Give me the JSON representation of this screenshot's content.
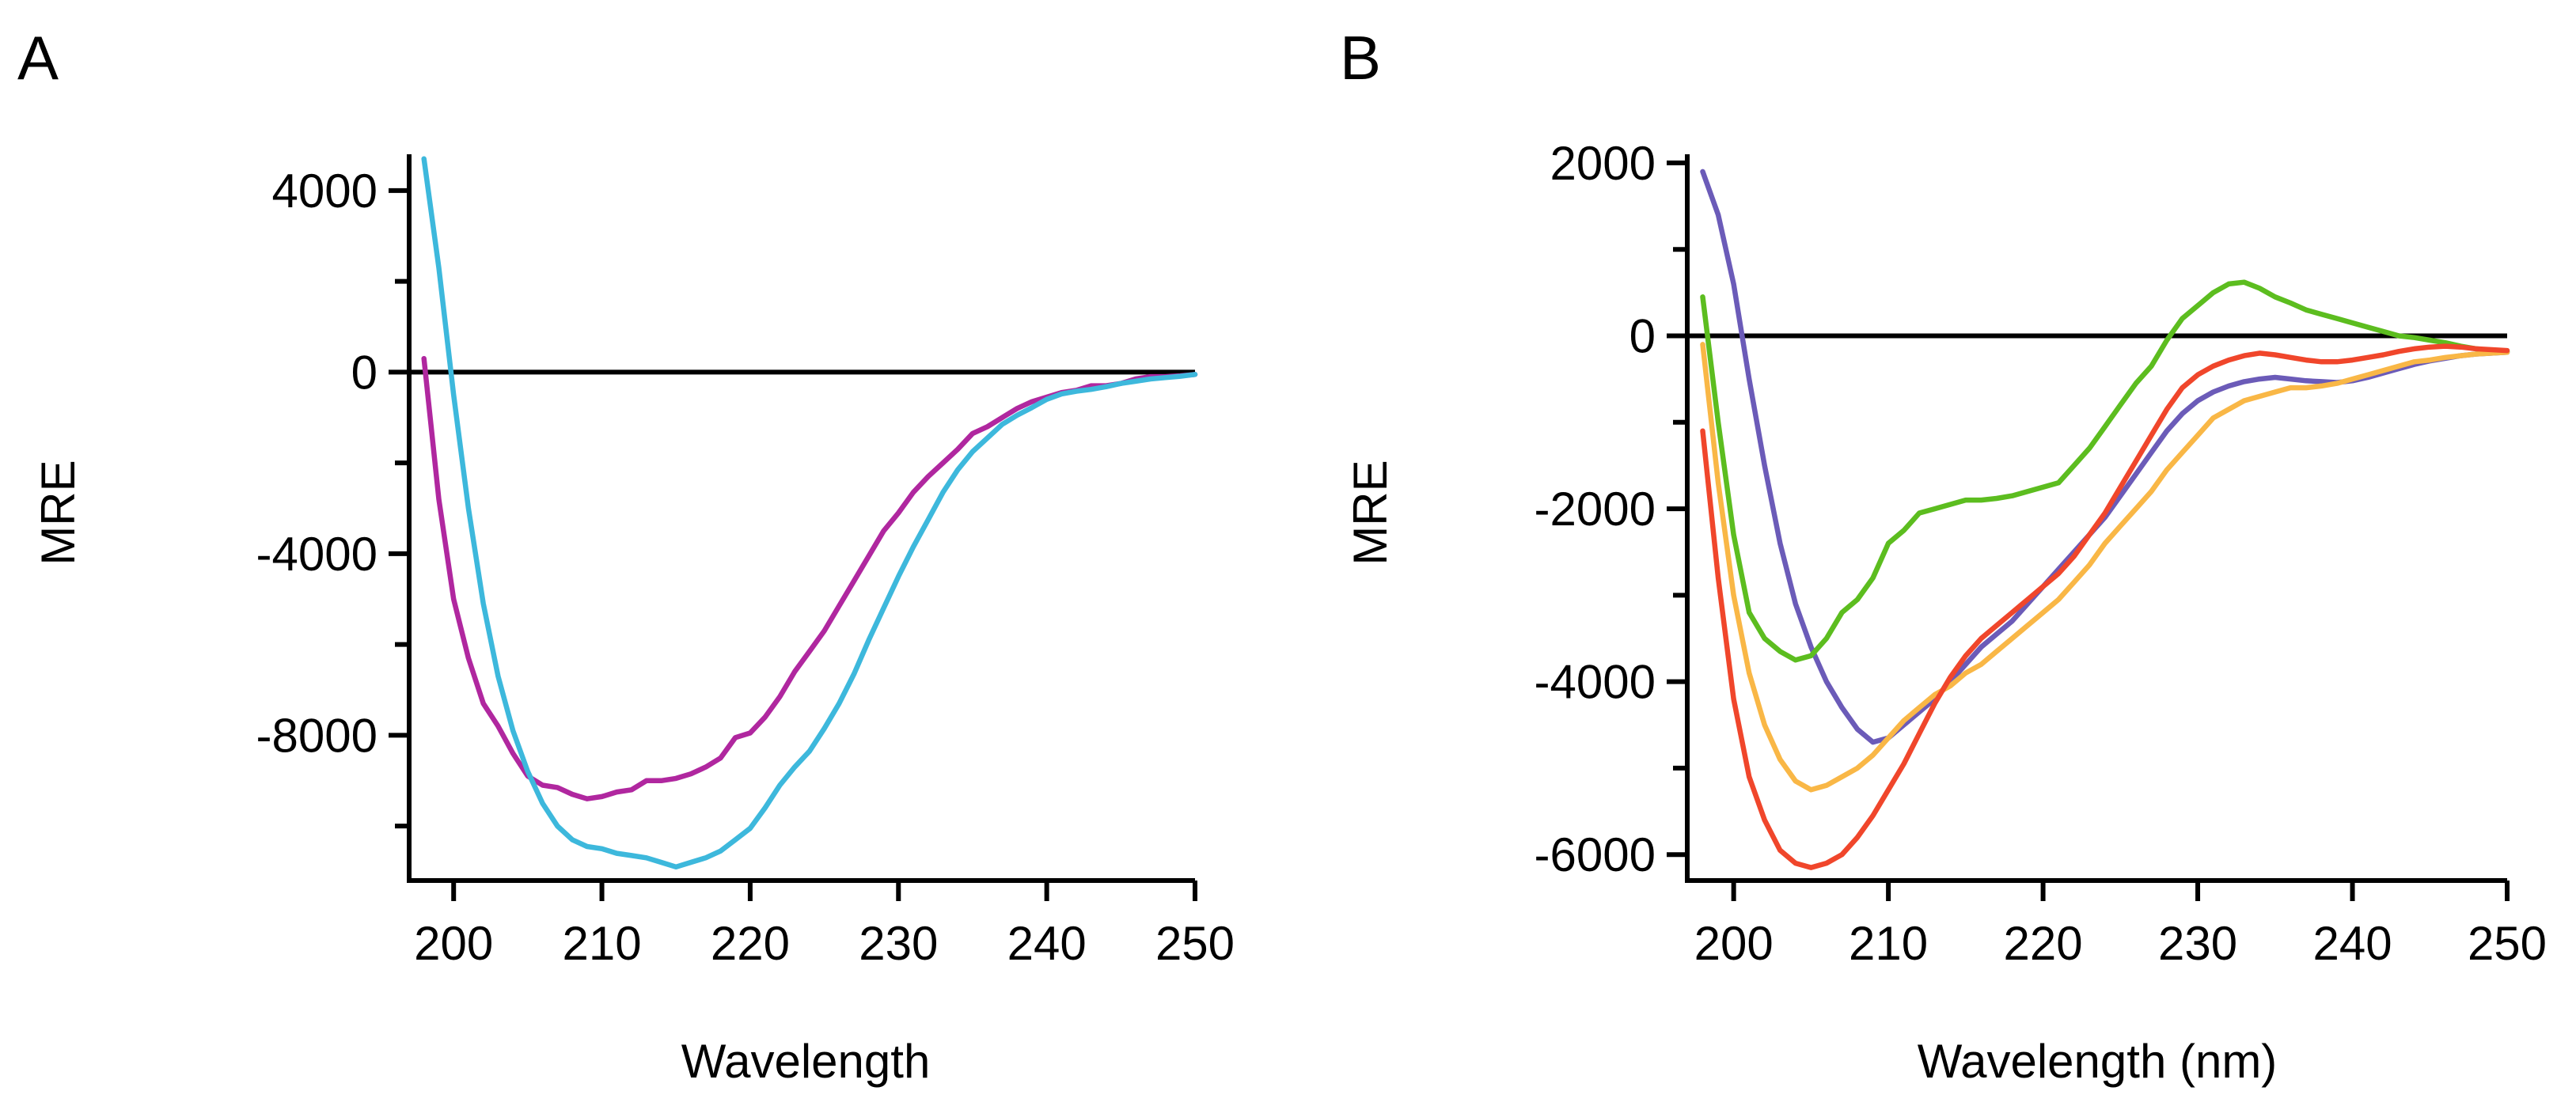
{
  "chart_data": [
    {
      "type": "line",
      "panel_label": "A",
      "title": "",
      "xlabel": "Wavelength",
      "ylabel": "MRE",
      "xlim": [
        197,
        250
      ],
      "ylim": [
        -11200,
        4800
      ],
      "xticks": [
        200,
        210,
        220,
        230,
        240,
        250
      ],
      "yticks": [
        4000,
        0,
        -4000,
        -8000
      ],
      "ytick_labels": [
        "4000",
        "0",
        "-4000",
        "-8000"
      ],
      "yminor_ticks": [
        2000,
        -2000,
        -6000,
        -10000
      ],
      "zero_line": true,
      "grid": false,
      "series": [
        {
          "name": "magenta",
          "color": "#b0279f",
          "x": [
            198,
            199,
            200,
            201,
            202,
            203,
            204,
            205,
            206,
            207,
            208,
            209,
            210,
            211,
            212,
            213,
            214,
            215,
            216,
            217,
            218,
            219,
            220,
            221,
            222,
            223,
            224,
            225,
            226,
            227,
            228,
            229,
            230,
            231,
            232,
            233,
            234,
            235,
            236,
            237,
            238,
            239,
            240,
            241,
            242,
            243,
            244,
            245,
            246,
            247,
            248,
            249,
            250
          ],
          "y": [
            300,
            -2800,
            -5000,
            -6300,
            -7300,
            -7800,
            -8400,
            -8900,
            -9100,
            -9150,
            -9300,
            -9400,
            -9350,
            -9250,
            -9200,
            -9000,
            -9000,
            -8950,
            -8850,
            -8700,
            -8500,
            -8050,
            -7950,
            -7600,
            -7150,
            -6600,
            -6150,
            -5700,
            -5150,
            -4600,
            -4050,
            -3500,
            -3100,
            -2650,
            -2300,
            -2000,
            -1700,
            -1350,
            -1200,
            -1000,
            -800,
            -650,
            -550,
            -450,
            -400,
            -300,
            -300,
            -250,
            -150,
            -100,
            -100,
            -80,
            -50
          ]
        },
        {
          "name": "cyan",
          "color": "#3db8dc",
          "x": [
            198,
            199,
            200,
            201,
            202,
            203,
            204,
            205,
            206,
            207,
            208,
            209,
            210,
            211,
            212,
            213,
            214,
            215,
            216,
            217,
            218,
            219,
            220,
            221,
            222,
            223,
            224,
            225,
            226,
            227,
            228,
            229,
            230,
            231,
            232,
            233,
            234,
            235,
            236,
            237,
            238,
            239,
            240,
            241,
            242,
            243,
            244,
            245,
            246,
            247,
            248,
            249,
            250
          ],
          "y": [
            4700,
            2300,
            -500,
            -3000,
            -5100,
            -6700,
            -7900,
            -8800,
            -9500,
            -10000,
            -10300,
            -10450,
            -10500,
            -10600,
            -10650,
            -10700,
            -10800,
            -10900,
            -10800,
            -10700,
            -10550,
            -10300,
            -10050,
            -9600,
            -9100,
            -8700,
            -8350,
            -7850,
            -7300,
            -6650,
            -5900,
            -5200,
            -4500,
            -3850,
            -3250,
            -2650,
            -2150,
            -1750,
            -1450,
            -1150,
            -950,
            -780,
            -600,
            -480,
            -420,
            -380,
            -320,
            -250,
            -200,
            -150,
            -120,
            -90,
            -50
          ]
        }
      ]
    },
    {
      "type": "line",
      "panel_label": "B",
      "title": "",
      "xlabel": "Wavelength (nm)",
      "ylabel": "MRE",
      "xlim": [
        197,
        250
      ],
      "ylim": [
        -6300,
        2100
      ],
      "xticks": [
        200,
        210,
        220,
        230,
        240,
        250
      ],
      "yticks": [
        2000,
        0,
        -2000,
        -4000,
        -6000
      ],
      "ytick_labels": [
        "2000",
        "0",
        "-2000",
        "-4000",
        "-6000"
      ],
      "yminor_ticks": [
        1000,
        -1000,
        -3000,
        -5000
      ],
      "zero_line": true,
      "grid": false,
      "series": [
        {
          "name": "purple",
          "color": "#6b5bb8",
          "x": [
            198,
            199,
            200,
            201,
            202,
            203,
            204,
            205,
            206,
            207,
            208,
            209,
            210,
            211,
            212,
            213,
            214,
            215,
            216,
            217,
            218,
            219,
            220,
            221,
            222,
            223,
            224,
            225,
            226,
            227,
            228,
            229,
            230,
            231,
            232,
            233,
            234,
            235,
            236,
            237,
            238,
            239,
            240,
            241,
            242,
            243,
            244,
            245,
            246,
            247,
            248,
            249,
            250
          ],
          "y": [
            1900,
            1400,
            600,
            -500,
            -1500,
            -2400,
            -3100,
            -3600,
            -4000,
            -4300,
            -4550,
            -4700,
            -4650,
            -4500,
            -4350,
            -4200,
            -4000,
            -3800,
            -3600,
            -3450,
            -3300,
            -3100,
            -2900,
            -2700,
            -2500,
            -2300,
            -2100,
            -1850,
            -1600,
            -1350,
            -1100,
            -900,
            -750,
            -650,
            -580,
            -530,
            -500,
            -480,
            -500,
            -520,
            -530,
            -540,
            -520,
            -480,
            -430,
            -380,
            -330,
            -290,
            -260,
            -230,
            -210,
            -200,
            -190
          ]
        },
        {
          "name": "green",
          "color": "#5cbd1f",
          "x": [
            198,
            199,
            200,
            201,
            202,
            203,
            204,
            205,
            206,
            207,
            208,
            209,
            210,
            211,
            212,
            213,
            214,
            215,
            216,
            217,
            218,
            219,
            220,
            221,
            222,
            223,
            224,
            225,
            226,
            227,
            228,
            229,
            230,
            231,
            232,
            233,
            234,
            235,
            236,
            237,
            238,
            239,
            240,
            241,
            242,
            243,
            244,
            245,
            246,
            247,
            248,
            249,
            250
          ],
          "y": [
            450,
            -1000,
            -2300,
            -3200,
            -3500,
            -3650,
            -3750,
            -3700,
            -3500,
            -3200,
            -3050,
            -2800,
            -2400,
            -2250,
            -2050,
            -2000,
            -1950,
            -1900,
            -1900,
            -1880,
            -1850,
            -1800,
            -1750,
            -1700,
            -1500,
            -1300,
            -1050,
            -800,
            -550,
            -350,
            -50,
            200,
            350,
            500,
            600,
            620,
            550,
            450,
            380,
            300,
            250,
            200,
            150,
            100,
            50,
            0,
            -20,
            -50,
            -80,
            -120,
            -150,
            -170,
            -180
          ]
        },
        {
          "name": "yellow",
          "color": "#f9b746",
          "x": [
            198,
            199,
            200,
            201,
            202,
            203,
            204,
            205,
            206,
            207,
            208,
            209,
            210,
            211,
            212,
            213,
            214,
            215,
            216,
            217,
            218,
            219,
            220,
            221,
            222,
            223,
            224,
            225,
            226,
            227,
            228,
            229,
            230,
            231,
            232,
            233,
            234,
            235,
            236,
            237,
            238,
            239,
            240,
            241,
            242,
            243,
            244,
            245,
            246,
            247,
            248,
            249,
            250
          ],
          "y": [
            -100,
            -1700,
            -3000,
            -3900,
            -4500,
            -4900,
            -5150,
            -5250,
            -5200,
            -5100,
            -5000,
            -4850,
            -4650,
            -4450,
            -4300,
            -4150,
            -4050,
            -3900,
            -3800,
            -3650,
            -3500,
            -3350,
            -3200,
            -3050,
            -2850,
            -2650,
            -2400,
            -2200,
            -2000,
            -1800,
            -1550,
            -1350,
            -1150,
            -950,
            -850,
            -750,
            -700,
            -650,
            -600,
            -600,
            -580,
            -550,
            -500,
            -450,
            -400,
            -350,
            -300,
            -280,
            -250,
            -230,
            -210,
            -200,
            -190
          ]
        },
        {
          "name": "red",
          "color": "#f0462b",
          "x": [
            198,
            199,
            200,
            201,
            202,
            203,
            204,
            205,
            206,
            207,
            208,
            209,
            210,
            211,
            212,
            213,
            214,
            215,
            216,
            217,
            218,
            219,
            220,
            221,
            222,
            223,
            224,
            225,
            226,
            227,
            228,
            229,
            230,
            231,
            232,
            233,
            234,
            235,
            236,
            237,
            238,
            239,
            240,
            241,
            242,
            243,
            244,
            245,
            246,
            247,
            248,
            249,
            250
          ],
          "y": [
            -1100,
            -2800,
            -4200,
            -5100,
            -5600,
            -5950,
            -6100,
            -6150,
            -6100,
            -6000,
            -5800,
            -5550,
            -5250,
            -4950,
            -4600,
            -4250,
            -3950,
            -3700,
            -3500,
            -3350,
            -3200,
            -3050,
            -2900,
            -2750,
            -2550,
            -2300,
            -2050,
            -1750,
            -1450,
            -1150,
            -850,
            -600,
            -450,
            -350,
            -280,
            -230,
            -200,
            -220,
            -250,
            -280,
            -300,
            -300,
            -280,
            -250,
            -220,
            -180,
            -150,
            -130,
            -120,
            -130,
            -150,
            -160,
            -170
          ]
        }
      ]
    }
  ]
}
